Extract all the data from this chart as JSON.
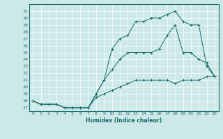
{
  "title": "",
  "xlabel": "Humidex (Indice chaleur)",
  "ylabel": "",
  "background_color": "#cce8e8",
  "line_color": "#1a6b6b",
  "xlim": [
    -0.5,
    23.5
  ],
  "ylim": [
    16.5,
    32.0
  ],
  "xticks": [
    0,
    1,
    2,
    3,
    4,
    5,
    6,
    7,
    8,
    9,
    10,
    11,
    12,
    13,
    14,
    15,
    16,
    17,
    18,
    19,
    20,
    21,
    22,
    23
  ],
  "yticks": [
    17,
    18,
    19,
    20,
    21,
    22,
    23,
    24,
    25,
    26,
    27,
    28,
    29,
    30,
    31
  ],
  "curve1_x": [
    0,
    1,
    2,
    3,
    4,
    5,
    6,
    7,
    8,
    9,
    10,
    11,
    12,
    13,
    14,
    15,
    16,
    17,
    18,
    19,
    20,
    21,
    22,
    23
  ],
  "curve1_y": [
    18.0,
    17.5,
    17.5,
    17.5,
    17.0,
    17.0,
    17.0,
    17.0,
    18.5,
    19.0,
    19.5,
    20.0,
    20.5,
    21.0,
    21.0,
    21.0,
    21.0,
    21.0,
    20.5,
    21.0,
    21.0,
    21.0,
    21.5,
    21.5
  ],
  "curve2_x": [
    0,
    1,
    2,
    3,
    4,
    5,
    6,
    7,
    8,
    9,
    10,
    11,
    12,
    13,
    14,
    15,
    16,
    17,
    18,
    19,
    20,
    21,
    22,
    23
  ],
  "curve2_y": [
    18.0,
    17.5,
    17.5,
    17.5,
    17.0,
    17.0,
    17.0,
    17.0,
    19.0,
    21.0,
    22.5,
    24.0,
    25.0,
    25.0,
    25.0,
    25.0,
    25.5,
    27.5,
    29.0,
    25.0,
    25.0,
    24.0,
    23.5,
    21.5
  ],
  "curve3_x": [
    0,
    1,
    2,
    3,
    4,
    5,
    6,
    7,
    8,
    9,
    10,
    11,
    12,
    13,
    14,
    15,
    16,
    17,
    18,
    19,
    20,
    21,
    22,
    23
  ],
  "curve3_y": [
    18.0,
    17.5,
    17.5,
    17.5,
    17.0,
    17.0,
    17.0,
    17.0,
    19.0,
    21.0,
    25.5,
    27.0,
    27.5,
    29.5,
    29.5,
    30.0,
    30.0,
    30.5,
    31.0,
    29.5,
    29.0,
    29.0,
    23.0,
    21.5
  ]
}
